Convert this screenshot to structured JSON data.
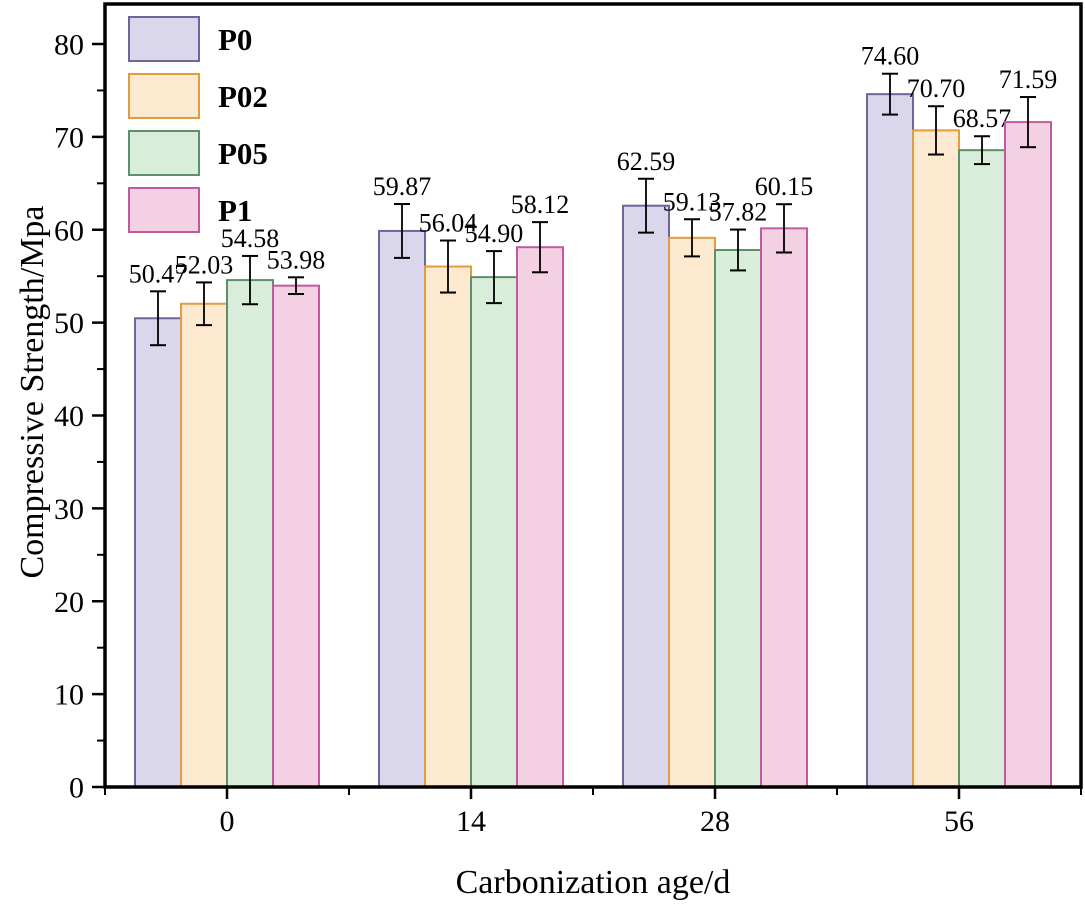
{
  "chart_data": {
    "type": "bar",
    "title": "",
    "xlabel": "Carbonization age/d",
    "ylabel": "Compressive Strength/Mpa",
    "categories": [
      "0",
      "14",
      "28",
      "56"
    ],
    "yticks": [
      0,
      10,
      20,
      30,
      40,
      50,
      60,
      70,
      80
    ],
    "ylim": [
      0,
      84.3
    ],
    "grid": false,
    "legend_position": "top-left-inside",
    "axis_color": "#000000",
    "series": [
      {
        "name": "P0",
        "fill": "#DAD6EB",
        "stroke": "#6A679E",
        "values": [
          50.47,
          59.87,
          62.59,
          74.6
        ],
        "errors": [
          2.9,
          2.9,
          2.9,
          2.2
        ]
      },
      {
        "name": "P02",
        "fill": "#FDE9CF",
        "stroke": "#E09C3E",
        "values": [
          52.03,
          56.04,
          59.13,
          70.7
        ],
        "errors": [
          2.3,
          2.8,
          2.0,
          2.6
        ]
      },
      {
        "name": "P05",
        "fill": "#D9EDDB",
        "stroke": "#5C9068",
        "values": [
          54.58,
          54.9,
          57.82,
          68.57
        ],
        "errors": [
          2.6,
          2.8,
          2.2,
          1.5
        ]
      },
      {
        "name": "P1",
        "fill": "#F3D1E3",
        "stroke": "#C35AA0",
        "values": [
          53.98,
          58.12,
          60.15,
          71.59
        ],
        "errors": [
          0.9,
          2.7,
          2.6,
          2.7
        ]
      }
    ]
  }
}
